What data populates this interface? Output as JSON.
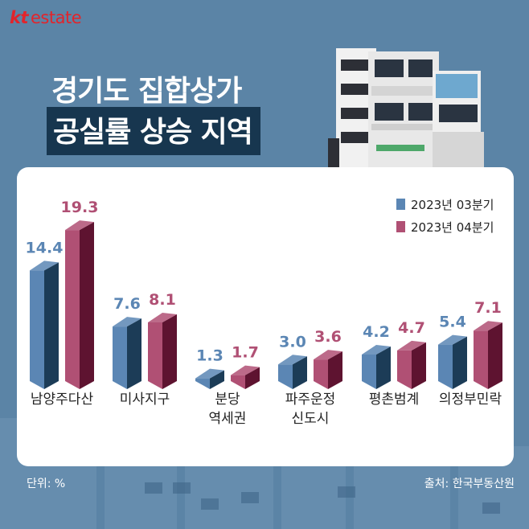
{
  "logo": {
    "brand": "kt",
    "suffix": "estate"
  },
  "title": {
    "line1": "경기도 집합상가",
    "line2": "공실률 상승 지역"
  },
  "colors": {
    "q3": "#5b86b4",
    "q4": "#b05074",
    "q3_dark": "#1c3c57",
    "q4_dark": "#5e1330"
  },
  "chart_data": {
    "type": "bar",
    "title": "경기도 집합상가 공실률 상승 지역",
    "categories": [
      [
        "남양주다산"
      ],
      [
        "미사지구"
      ],
      [
        "분당",
        "역세권"
      ],
      [
        "파주운정",
        "신도시"
      ],
      [
        "평촌범계"
      ],
      [
        "의정부민락"
      ]
    ],
    "series": [
      {
        "name": "2023년 03분기",
        "values": [
          14.4,
          7.6,
          1.3,
          3.0,
          4.2,
          5.4
        ]
      },
      {
        "name": "2023년 04분기",
        "values": [
          19.3,
          8.1,
          1.7,
          3.6,
          4.7,
          7.1
        ]
      }
    ],
    "value_labels": [
      [
        "14.4",
        "7.6",
        "1.3",
        "3.0",
        "4.2",
        "5.4"
      ],
      [
        "19.3",
        "8.1",
        "1.7",
        "3.6",
        "4.7",
        "7.1"
      ]
    ],
    "ylim": [
      0,
      22
    ],
    "xlabel": "",
    "ylabel": ""
  },
  "footer": {
    "unit": "단위: %",
    "source": "출처: 한국부동산원"
  }
}
